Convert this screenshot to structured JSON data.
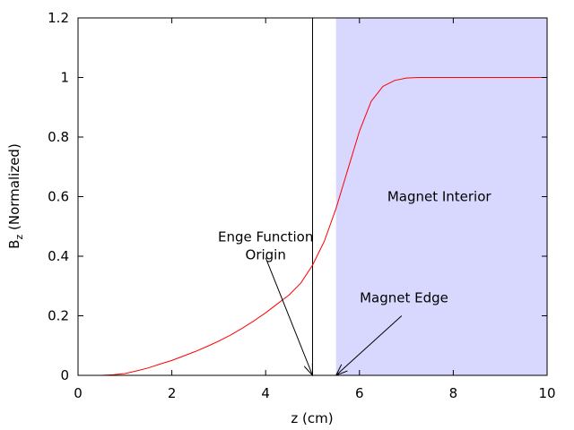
{
  "chart_data": {
    "type": "line",
    "title": "",
    "xlabel": "z (cm)",
    "ylabel": {
      "main": "B",
      "sub": "z",
      "rest": " (Normalized)"
    },
    "xlim": [
      0,
      10
    ],
    "ylim": [
      0,
      1.2
    ],
    "xticks": [
      0,
      2,
      4,
      6,
      8,
      10
    ],
    "yticks": [
      0,
      0.2,
      0.4,
      0.6,
      0.8,
      1
    ],
    "xtick_labels": [
      "0",
      "2",
      "4",
      "6",
      "8",
      "10"
    ],
    "ytick_labels": [
      "0",
      "0.2",
      "0.4",
      "0.6",
      "0.8",
      "1",
      "1.2"
    ],
    "grid": false,
    "legend": "none",
    "series": [
      {
        "color": "#ff0000",
        "x": [
          0.5,
          0.75,
          1.0,
          1.25,
          1.5,
          1.75,
          2.0,
          2.25,
          2.5,
          2.75,
          3.0,
          3.25,
          3.5,
          3.75,
          4.0,
          4.25,
          4.5,
          4.75,
          5.0,
          5.25,
          5.5,
          5.75,
          6.0,
          6.25,
          6.5,
          6.75,
          7.0,
          7.25,
          7.5,
          8.0,
          9.0,
          10.0
        ],
        "y": [
          0.0,
          0.002,
          0.006,
          0.015,
          0.025,
          0.038,
          0.05,
          0.065,
          0.08,
          0.097,
          0.115,
          0.135,
          0.158,
          0.183,
          0.21,
          0.24,
          0.27,
          0.31,
          0.37,
          0.45,
          0.56,
          0.69,
          0.82,
          0.92,
          0.97,
          0.99,
          0.998,
          1.0,
          1.0,
          1.0,
          1.0,
          1.0
        ]
      }
    ],
    "shaded_region": {
      "x_from": 5.5,
      "x_to": 10,
      "color": "#d8d8ff",
      "label": "Magnet Interior",
      "label_x": 7.7,
      "label_y": 0.6
    },
    "vertical_line": {
      "x": 5.0,
      "color": "#000000"
    },
    "annotations": [
      {
        "lines": [
          "Enge Function",
          "Origin"
        ],
        "text_x": 4.0,
        "text_y": 0.45,
        "arrow_from_x": 4.0,
        "arrow_from_y": 0.395,
        "arrow_to_x": 5.0,
        "arrow_to_y": 0.0
      },
      {
        "lines": [
          "Magnet Edge"
        ],
        "text_x": 6.95,
        "text_y": 0.245,
        "arrow_from_x": 6.9,
        "arrow_from_y": 0.2,
        "arrow_to_x": 5.5,
        "arrow_to_y": 0.0
      }
    ]
  }
}
